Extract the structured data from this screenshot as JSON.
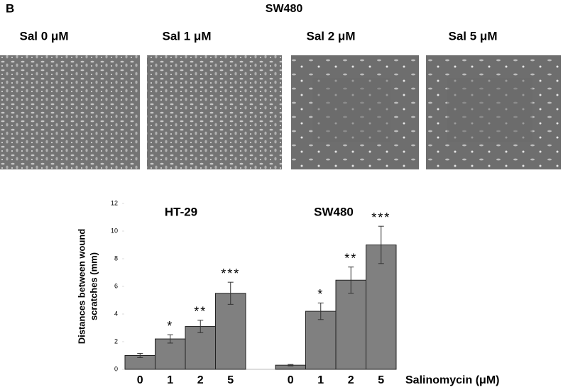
{
  "header": {
    "panel": "B",
    "title": "SW480"
  },
  "images": [
    {
      "label": "Sal 0 μM"
    },
    {
      "label": "Sal 1 μM"
    },
    {
      "label": "Sal 2 μM"
    },
    {
      "label": "Sal 5 μM"
    }
  ],
  "chart_data": {
    "type": "bar",
    "ylabel": [
      "Distances between wound",
      "scratches (mm)"
    ],
    "xlabel": "Salinomycin (μM)",
    "categories": [
      "0",
      "1",
      "2",
      "5"
    ],
    "series": [
      {
        "name": "HT-29",
        "color": "#808080",
        "values": [
          1.0,
          2.2,
          3.1,
          5.5
        ],
        "errors": [
          0.15,
          0.3,
          0.45,
          0.8
        ],
        "significance": [
          null,
          "*",
          "**",
          "***"
        ]
      },
      {
        "name": "SW480",
        "color": "#808080",
        "values": [
          0.3,
          4.2,
          6.45,
          9.0
        ],
        "errors": [
          0.05,
          0.6,
          0.95,
          1.35
        ],
        "significance": [
          null,
          "*",
          "**",
          "***"
        ]
      }
    ],
    "ylim": [
      0,
      12
    ],
    "yticks": [
      0,
      2,
      4,
      6,
      8,
      10,
      12
    ]
  }
}
